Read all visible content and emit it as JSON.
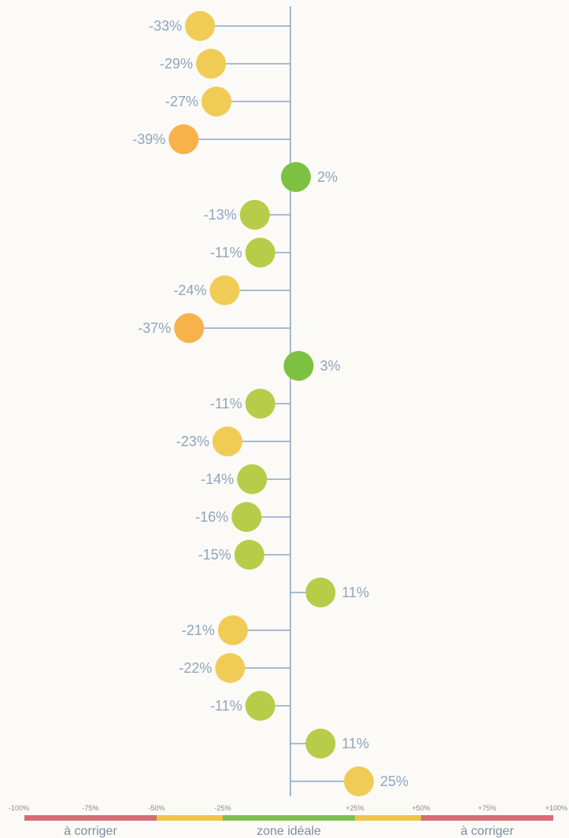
{
  "chart_data": {
    "type": "scatter",
    "orientation": "horizontal-lollipop",
    "values": [
      -33,
      -29,
      -27,
      -39,
      2,
      -13,
      -11,
      -24,
      -37,
      3,
      -11,
      -23,
      -14,
      -16,
      -15,
      11,
      -21,
      -22,
      -11,
      11,
      25
    ],
    "value_labels": [
      "-33%",
      "-29%",
      "-27%",
      "-39%",
      "2%",
      "-13%",
      "-11%",
      "-24%",
      "-37%",
      "3%",
      "-11%",
      "-23%",
      "-14%",
      "-16%",
      "-15%",
      "11%",
      "-21%",
      "-22%",
      "-11%",
      "11%",
      "25%"
    ],
    "xlim": [
      -100,
      100
    ],
    "ticks": [
      -100,
      -75,
      -50,
      -25,
      25,
      50,
      75,
      100
    ],
    "tick_labels": [
      "-100%",
      "-75%",
      "-50%",
      "-25%",
      "+25%",
      "+50%",
      "+75%",
      "+100%"
    ],
    "zones": [
      {
        "range": [
          -100,
          -50
        ],
        "color": "#d96b74",
        "label": "à corriger"
      },
      {
        "range": [
          -50,
          -25
        ],
        "color": "#f2c349",
        "label": ""
      },
      {
        "range": [
          -25,
          25
        ],
        "color": "#7fbf4d",
        "label": "zone idéale"
      },
      {
        "range": [
          25,
          50
        ],
        "color": "#f2c349",
        "label": ""
      },
      {
        "range": [
          50,
          100
        ],
        "color": "#d96b74",
        "label": "à corriger"
      }
    ],
    "dot_colors": {
      "green": "#7cc142",
      "yellow_green": "#b7cc48",
      "yellow": "#f0cc56",
      "orange": "#f8b24c"
    },
    "axis_color": "#8ea6c4"
  }
}
